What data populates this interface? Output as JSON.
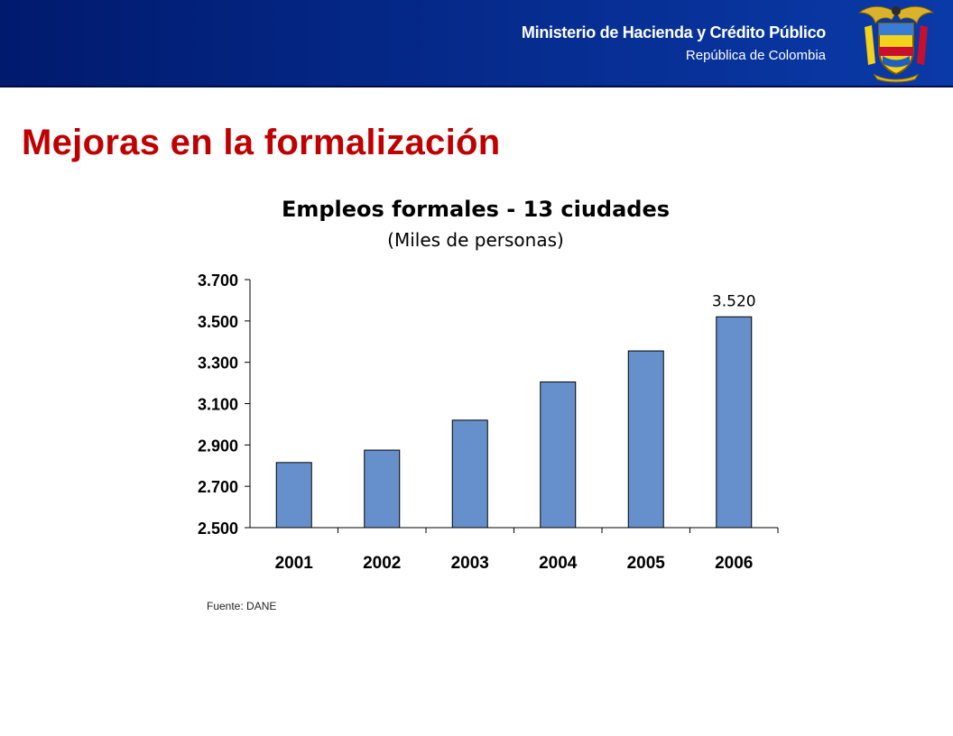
{
  "header": {
    "ministry": "Ministerio de Hacienda y Crédito Público",
    "republic": "República de Colombia",
    "seal_icon": "colombia-coat-of-arms-icon",
    "background_color": "#062c8f"
  },
  "slide": {
    "title": "Mejoras en la formalización",
    "title_color": "#c00000",
    "source": "Fuente: DANE"
  },
  "chart_data": {
    "type": "bar",
    "title": "Empleos formales - 13 ciudades",
    "subtitle": "(Miles de personas)",
    "categories": [
      "2001",
      "2002",
      "2003",
      "2004",
      "2005",
      "2006"
    ],
    "values": [
      2815,
      2875,
      3020,
      3205,
      3355,
      3520
    ],
    "ylim": [
      2500,
      3700
    ],
    "yticks": [
      2500,
      2700,
      2900,
      3100,
      3300,
      3500,
      3700
    ],
    "ytick_labels": [
      "2.500",
      "2.700",
      "2.900",
      "3.100",
      "3.300",
      "3.500",
      "3.700"
    ],
    "data_labels": [
      "",
      "",
      "",
      "",
      "",
      "3.520"
    ],
    "bar_color": "#6690cc",
    "grid": false,
    "legend": "none",
    "xlabel": "",
    "ylabel": ""
  }
}
